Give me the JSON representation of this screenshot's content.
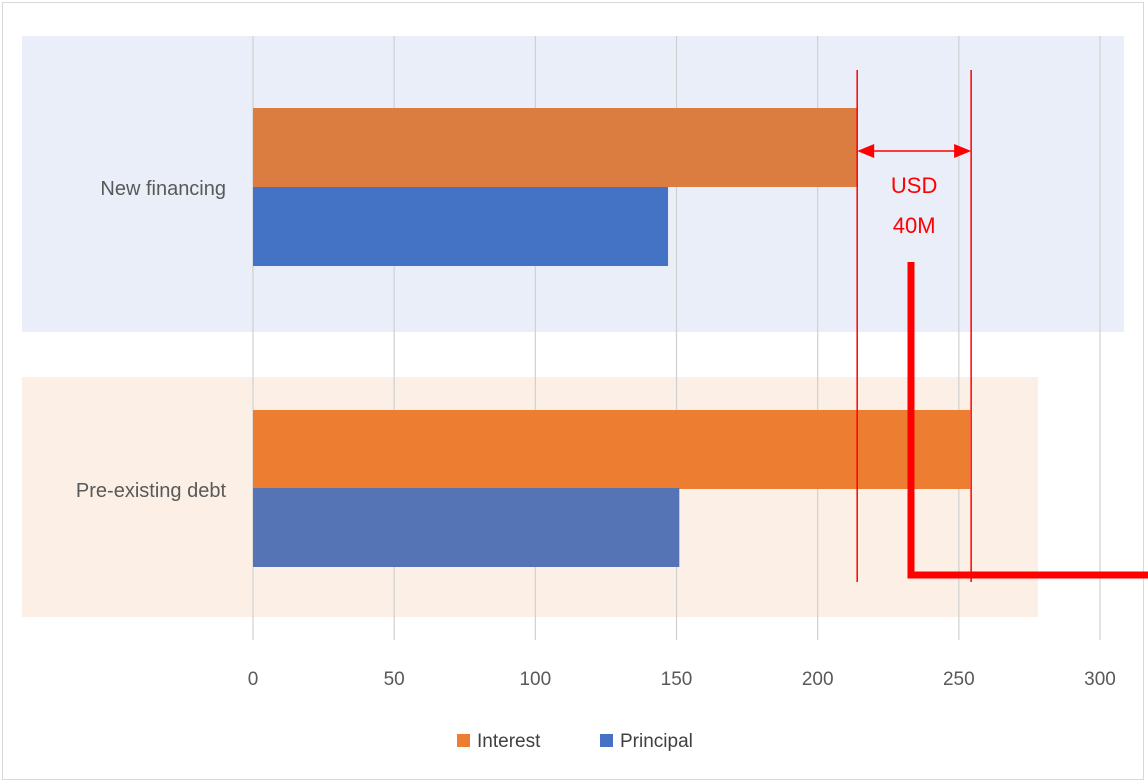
{
  "chart_data": {
    "type": "bar",
    "orientation": "horizontal",
    "categories": [
      "New financing",
      "Pre-existing debt"
    ],
    "series": [
      {
        "name": "Interest",
        "values": [
          214,
          254
        ],
        "color": "#ed7d31"
      },
      {
        "name": "Principal",
        "values": [
          147,
          151
        ],
        "color": "#4472c4"
      }
    ],
    "category_band_colors": [
      "#e9eef8",
      "#fcf0e6"
    ],
    "xlim": [
      0,
      300
    ],
    "xticks": [
      0,
      50,
      100,
      150,
      200,
      250,
      300
    ],
    "tick_labels": [
      "0",
      "50",
      "100",
      "150",
      "200",
      "250",
      "300"
    ],
    "grid": true,
    "legend_position": "bottom",
    "title": "",
    "xlabel": "",
    "ylabel": "",
    "annotation": {
      "lines": [
        "USD",
        "40M"
      ],
      "from_value": 214,
      "to_value": 254,
      "color": "#ff0000"
    }
  }
}
